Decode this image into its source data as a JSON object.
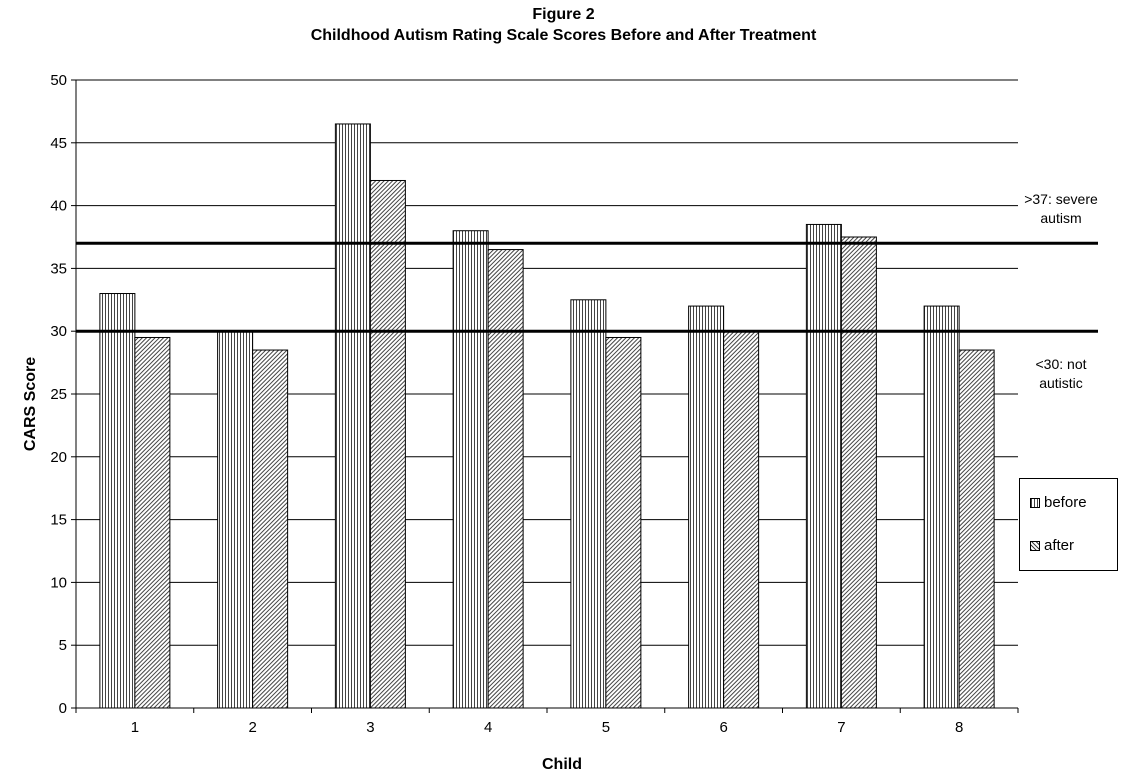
{
  "chart_data": {
    "type": "bar",
    "title": "Figure 2",
    "subtitle": "Childhood Autism Rating Scale Scores Before and After Treatment",
    "xlabel": "Child",
    "ylabel": "CARS Score",
    "categories": [
      "1",
      "2",
      "3",
      "4",
      "5",
      "6",
      "7",
      "8"
    ],
    "series": [
      {
        "name": "before",
        "values": [
          33,
          30,
          46.5,
          38,
          32.5,
          32,
          38.5,
          32
        ]
      },
      {
        "name": "after",
        "values": [
          29.5,
          28.5,
          42,
          36.5,
          29.5,
          30,
          37.5,
          28.5
        ]
      }
    ],
    "ylim": [
      0,
      50
    ],
    "yticks": [
      0,
      5,
      10,
      15,
      20,
      25,
      30,
      35,
      40,
      45,
      50
    ],
    "grid": true,
    "legend": "right",
    "reference_lines": [
      {
        "value": 37,
        "label_lines": [
          ">37: severe",
          "autism"
        ]
      },
      {
        "value": 30,
        "label_lines": [
          "<30: not",
          "autistic"
        ]
      }
    ]
  }
}
